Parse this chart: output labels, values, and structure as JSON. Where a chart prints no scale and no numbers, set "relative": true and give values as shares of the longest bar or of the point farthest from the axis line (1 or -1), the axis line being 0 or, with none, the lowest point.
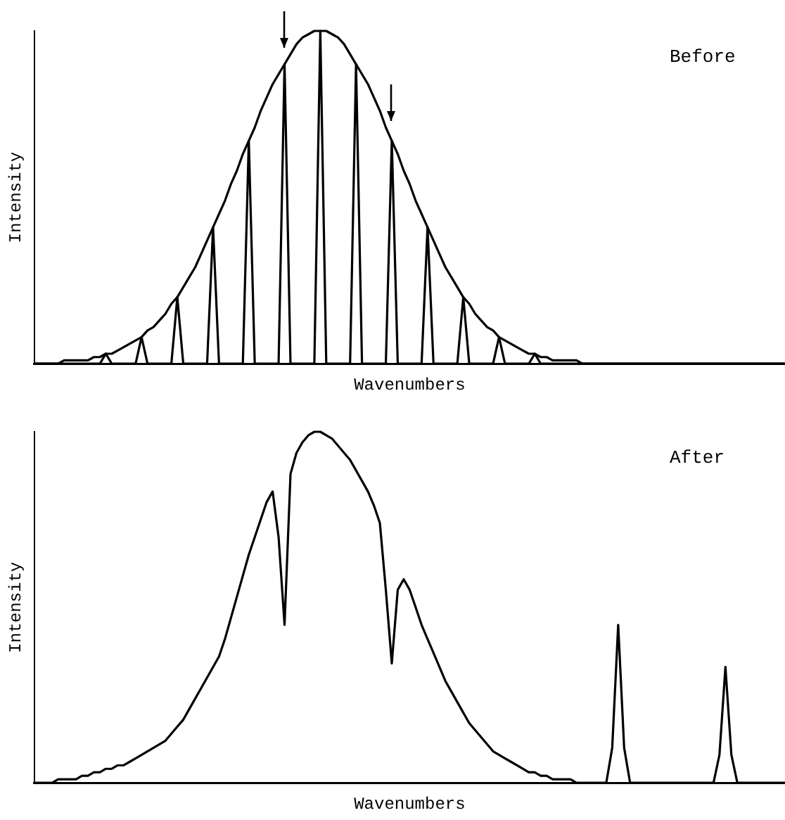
{
  "chart_data": [
    {
      "type": "line",
      "relative": true,
      "xlabel": "Wavenumbers",
      "ylabel": "Intensity",
      "annotations": [
        "Before"
      ],
      "grid": false,
      "legend": false,
      "tick_labels": false,
      "marker": "none",
      "line_style": "solid",
      "categories": [
        null,
        null,
        null,
        null,
        null,
        null,
        null,
        null,
        null,
        null,
        null,
        null,
        null,
        null,
        null,
        null,
        null,
        null,
        null,
        null,
        null,
        null,
        null,
        null,
        null,
        null,
        null,
        null,
        null,
        null,
        null,
        null,
        null,
        null,
        null,
        null,
        null,
        null,
        null,
        null,
        null,
        null,
        null,
        null,
        null,
        null,
        null,
        null,
        null,
        null,
        null,
        null,
        null,
        null,
        null,
        null,
        null,
        null,
        null,
        null,
        null,
        null,
        null,
        null,
        null,
        null,
        null,
        null,
        null,
        null,
        null,
        null,
        null,
        null,
        null,
        null,
        null,
        null,
        null,
        null,
        null,
        null,
        null,
        null,
        null,
        null,
        null,
        null,
        null,
        null,
        null,
        null,
        null,
        null,
        null,
        null,
        null,
        null,
        null,
        null,
        null,
        null,
        null,
        null,
        null,
        null,
        null,
        null,
        null,
        null,
        null,
        null,
        null,
        null,
        null,
        null,
        null,
        null,
        null,
        null,
        null,
        null,
        null,
        null,
        null,
        null,
        null
      ],
      "series": [
        {
          "color": "#000000",
          "values": [
            0,
            0,
            0,
            0,
            0,
            0.01,
            0.01,
            0.01,
            0.01,
            0.01,
            0.02,
            0.02,
            0.03,
            0.03,
            0.04,
            0.05,
            0.06,
            0.07,
            0.08,
            0.1,
            0.11,
            0.13,
            0.15,
            0.18,
            0.2,
            0.23,
            0.26,
            0.29,
            0.33,
            0.37,
            0.41,
            0.45,
            0.49,
            0.54,
            0.58,
            0.63,
            0.67,
            0.71,
            0.76,
            0.8,
            0.84,
            0.87,
            0.9,
            0.93,
            0.96,
            0.98,
            0.99,
            1,
            1,
            1,
            0.99,
            0.98,
            0.96,
            0.93,
            0.9,
            0.87,
            0.84,
            0.8,
            0.76,
            0.71,
            0.67,
            0.63,
            0.58,
            0.54,
            0.49,
            0.45,
            0.41,
            0.37,
            0.33,
            0.29,
            0.26,
            0.23,
            0.2,
            0.18,
            0.15,
            0.13,
            0.11,
            0.1,
            0.08,
            0.07,
            0.06,
            0.05,
            0.04,
            0.03,
            0.03,
            0.02,
            0.02,
            0.01,
            0.01,
            0.01,
            0.01,
            0.01,
            0,
            0,
            0,
            0,
            0,
            0,
            0,
            0,
            0,
            0,
            0,
            0,
            0,
            0,
            0,
            0,
            0,
            0,
            0,
            0,
            0,
            0,
            0,
            0,
            0,
            0,
            0,
            0,
            0,
            0,
            0,
            0,
            0,
            0,
            0
          ]
        },
        {
          "color": "#000000",
          "values": [
            0,
            0,
            0,
            0,
            0,
            0,
            0,
            0,
            0,
            0,
            0,
            0,
            0.03,
            0,
            0,
            0,
            0,
            0,
            0.08,
            0,
            0,
            0,
            0,
            0,
            0.2,
            0,
            0,
            0,
            0,
            0,
            0.41,
            0,
            0,
            0,
            0,
            0,
            0.67,
            0,
            0,
            0,
            0,
            0,
            0.9,
            0,
            0,
            0,
            0,
            0,
            1,
            0,
            0,
            0,
            0,
            0,
            0.9,
            0,
            0,
            0,
            0,
            0,
            0.67,
            0,
            0,
            0,
            0,
            0,
            0.41,
            0,
            0,
            0,
            0,
            0,
            0.2,
            0,
            0,
            0,
            0,
            0,
            0.08,
            0,
            0,
            0,
            0,
            0,
            0.03,
            0,
            0,
            0,
            0,
            0,
            0,
            0,
            0,
            0,
            0,
            0,
            0,
            0,
            0,
            0,
            0,
            0,
            0,
            0,
            0,
            0,
            0,
            0,
            0,
            0,
            0,
            0,
            0,
            0,
            0,
            0,
            0,
            0,
            0,
            0,
            0,
            0,
            0,
            0,
            0,
            0,
            0
          ]
        }
      ]
    },
    {
      "type": "line",
      "relative": true,
      "xlabel": "Wavenumbers",
      "ylabel": "Intensity",
      "annotations": [
        "After"
      ],
      "grid": false,
      "legend": false,
      "tick_labels": false,
      "marker": "none",
      "line_style": "solid",
      "categories": [
        null,
        null,
        null,
        null,
        null,
        null,
        null,
        null,
        null,
        null,
        null,
        null,
        null,
        null,
        null,
        null,
        null,
        null,
        null,
        null,
        null,
        null,
        null,
        null,
        null,
        null,
        null,
        null,
        null,
        null,
        null,
        null,
        null,
        null,
        null,
        null,
        null,
        null,
        null,
        null,
        null,
        null,
        null,
        null,
        null,
        null,
        null,
        null,
        null,
        null,
        null,
        null,
        null,
        null,
        null,
        null,
        null,
        null,
        null,
        null,
        null,
        null,
        null,
        null,
        null,
        null,
        null,
        null,
        null,
        null,
        null,
        null,
        null,
        null,
        null,
        null,
        null,
        null,
        null,
        null,
        null,
        null,
        null,
        null,
        null,
        null,
        null,
        null,
        null,
        null,
        null,
        null,
        null,
        null,
        null,
        null,
        null,
        null,
        null,
        null,
        null,
        null,
        null,
        null,
        null,
        null,
        null,
        null,
        null,
        null,
        null,
        null,
        null,
        null,
        null,
        null,
        null,
        null,
        null,
        null,
        null,
        null,
        null,
        null,
        null,
        null,
        null
      ],
      "series": [
        {
          "color": "#000000",
          "values": [
            0,
            0,
            0,
            0,
            0.01,
            0.01,
            0.01,
            0.01,
            0.02,
            0.02,
            0.03,
            0.03,
            0.04,
            0.04,
            0.05,
            0.05,
            0.06,
            0.07,
            0.08,
            0.09,
            0.1,
            0.11,
            0.12,
            0.14,
            0.16,
            0.18,
            0.21,
            0.24,
            0.27,
            0.3,
            0.33,
            0.36,
            0.41,
            0.47,
            0.53,
            0.59,
            0.65,
            0.7,
            0.75,
            0.8,
            0.83,
            0.7,
            0.45,
            0.88,
            0.94,
            0.97,
            0.99,
            1,
            1,
            0.99,
            0.98,
            0.96,
            0.94,
            0.92,
            0.89,
            0.86,
            0.83,
            0.79,
            0.74,
            0.55,
            0.34,
            0.55,
            0.58,
            0.55,
            0.5,
            0.45,
            0.41,
            0.37,
            0.33,
            0.29,
            0.26,
            0.23,
            0.2,
            0.17,
            0.15,
            0.13,
            0.11,
            0.09,
            0.08,
            0.07,
            0.06,
            0.05,
            0.04,
            0.03,
            0.03,
            0.02,
            0.02,
            0.01,
            0.01,
            0.01,
            0.01,
            0,
            0,
            0,
            0,
            0,
            0,
            0.1,
            0.45,
            0.1,
            0,
            0,
            0,
            0,
            0,
            0,
            0,
            0,
            0,
            0,
            0,
            0,
            0,
            0,
            0,
            0.08,
            0.33,
            0.08,
            0,
            0,
            0,
            0,
            0,
            0,
            0,
            0,
            0
          ]
        }
      ]
    }
  ]
}
